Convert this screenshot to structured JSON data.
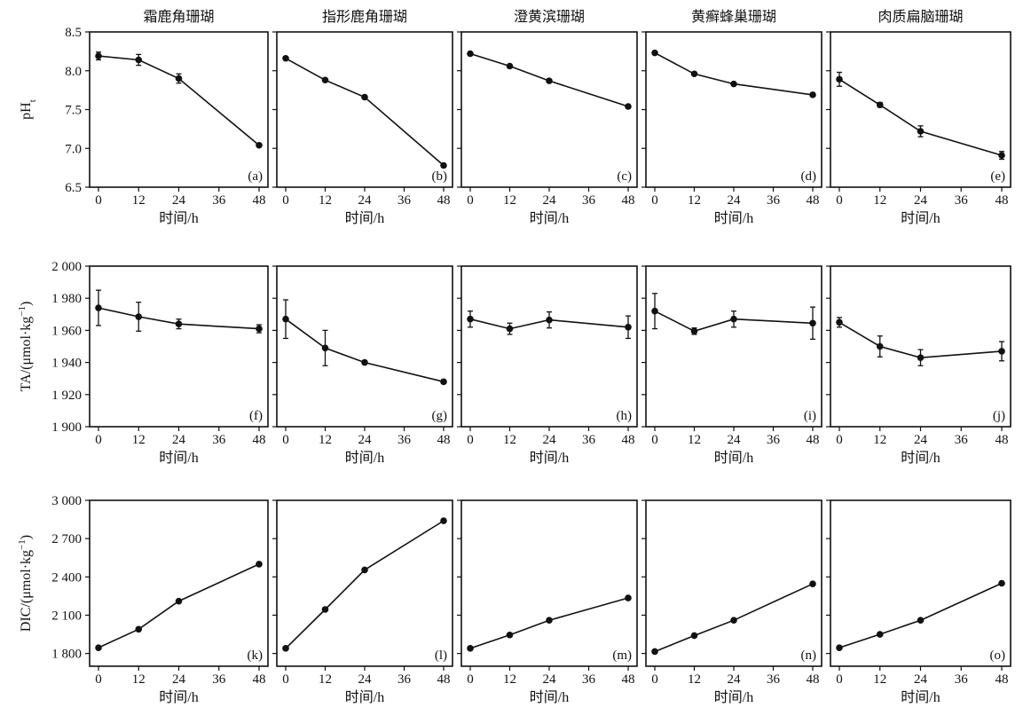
{
  "columns": [
    {
      "title": "霜鹿角珊瑚"
    },
    {
      "title": "指形鹿角珊瑚"
    },
    {
      "title": "澄黄滨珊瑚"
    },
    {
      "title": "黄癣蜂巢珊瑚"
    },
    {
      "title": "肉质扁脑珊瑚"
    }
  ],
  "rows": [
    {
      "ylabel_main": "pH",
      "ylabel_sub": "t",
      "ylabel_sup": "",
      "ylabel_tail": "",
      "yticks": [
        6.5,
        7.0,
        7.5,
        8.0,
        8.5
      ],
      "yticklabels": [
        "6.5",
        "7.0",
        "7.5",
        "8.0",
        "8.5"
      ]
    },
    {
      "ylabel_main": "TA/(μmol·kg",
      "ylabel_sub": "",
      "ylabel_sup": "−1",
      "ylabel_tail": ")",
      "yticks": [
        1900,
        1920,
        1940,
        1960,
        1980,
        2000
      ],
      "yticklabels": [
        "1 900",
        "1 920",
        "1 940",
        "1 960",
        "1 980",
        "2 000"
      ]
    },
    {
      "ylabel_main": "DIC/(μmol·kg",
      "ylabel_sub": "",
      "ylabel_sup": "−1",
      "ylabel_tail": ")",
      "yticks": [
        1800,
        2100,
        2400,
        2700,
        3000
      ],
      "yticklabels": [
        "1 800",
        "2 100",
        "2 400",
        "2 700",
        "3 000"
      ]
    }
  ],
  "xlabel": "时间/h",
  "xticks": [
    0,
    12,
    24,
    36,
    48
  ],
  "chart_data": [
    {
      "type": "line",
      "panel": "(a)",
      "ylim": [
        6.5,
        8.5
      ],
      "x": [
        0,
        12,
        24,
        48
      ],
      "y": [
        8.19,
        8.14,
        7.9,
        7.04
      ],
      "err": [
        0.05,
        0.07,
        0.06,
        0.02
      ]
    },
    {
      "type": "line",
      "panel": "(b)",
      "ylim": [
        6.5,
        8.5
      ],
      "x": [
        0,
        12,
        24,
        48
      ],
      "y": [
        8.16,
        7.88,
        7.66,
        6.78
      ],
      "err": [
        0.02,
        0.02,
        0.02,
        0.02
      ]
    },
    {
      "type": "line",
      "panel": "(c)",
      "ylim": [
        6.5,
        8.5
      ],
      "x": [
        0,
        12,
        24,
        48
      ],
      "y": [
        8.22,
        8.06,
        7.87,
        7.54
      ],
      "err": [
        0.02,
        0.02,
        0.02,
        0.02
      ]
    },
    {
      "type": "line",
      "panel": "(d)",
      "ylim": [
        6.5,
        8.5
      ],
      "x": [
        0,
        12,
        24,
        48
      ],
      "y": [
        8.23,
        7.96,
        7.83,
        7.69
      ],
      "err": [
        0.02,
        0.02,
        0.02,
        0.02
      ]
    },
    {
      "type": "line",
      "panel": "(e)",
      "ylim": [
        6.5,
        8.5
      ],
      "x": [
        0,
        12,
        24,
        48
      ],
      "y": [
        7.89,
        7.56,
        7.22,
        6.91
      ],
      "err": [
        0.09,
        0.03,
        0.07,
        0.05
      ]
    },
    {
      "type": "line",
      "panel": "(f)",
      "ylim": [
        1900,
        2000
      ],
      "x": [
        0,
        12,
        24,
        48
      ],
      "y": [
        1974,
        1968.5,
        1964,
        1961
      ],
      "err": [
        11,
        9,
        3,
        2.5
      ]
    },
    {
      "type": "line",
      "panel": "(g)",
      "ylim": [
        1900,
        2000
      ],
      "x": [
        0,
        12,
        24,
        48
      ],
      "y": [
        1967,
        1949,
        1940,
        1928
      ],
      "err": [
        12,
        11,
        1,
        1
      ]
    },
    {
      "type": "line",
      "panel": "(h)",
      "ylim": [
        1900,
        2000
      ],
      "x": [
        0,
        12,
        24,
        48
      ],
      "y": [
        1967,
        1961,
        1966.5,
        1962
      ],
      "err": [
        5,
        3.5,
        5,
        7
      ]
    },
    {
      "type": "line",
      "panel": "(i)",
      "ylim": [
        1900,
        2000
      ],
      "x": [
        0,
        12,
        24,
        48
      ],
      "y": [
        1972,
        1959.5,
        1967,
        1964.5
      ],
      "err": [
        11,
        2,
        5,
        10
      ]
    },
    {
      "type": "line",
      "panel": "(j)",
      "ylim": [
        1900,
        2000
      ],
      "x": [
        0,
        12,
        24,
        48
      ],
      "y": [
        1965,
        1950,
        1943,
        1947
      ],
      "err": [
        3,
        6.5,
        5,
        6
      ]
    },
    {
      "type": "line",
      "panel": "(k)",
      "ylim": [
        1700,
        3000
      ],
      "x": [
        0,
        12,
        24,
        48
      ],
      "y": [
        1845,
        1990,
        2210,
        2500
      ],
      "err": [
        0,
        0,
        0,
        0
      ]
    },
    {
      "type": "line",
      "panel": "(l)",
      "ylim": [
        1700,
        3000
      ],
      "x": [
        0,
        12,
        24,
        48
      ],
      "y": [
        1840,
        2145,
        2455,
        2840
      ],
      "err": [
        0,
        0,
        0,
        0
      ]
    },
    {
      "type": "line",
      "panel": "(m)",
      "ylim": [
        1700,
        3000
      ],
      "x": [
        0,
        12,
        24,
        48
      ],
      "y": [
        1840,
        1945,
        2060,
        2235
      ],
      "err": [
        0,
        0,
        0,
        0
      ]
    },
    {
      "type": "line",
      "panel": "(n)",
      "ylim": [
        1700,
        3000
      ],
      "x": [
        0,
        12,
        24,
        48
      ],
      "y": [
        1815,
        1940,
        2060,
        2345
      ],
      "err": [
        0,
        0,
        0,
        0
      ]
    },
    {
      "type": "line",
      "panel": "(o)",
      "ylim": [
        1700,
        3000
      ],
      "x": [
        0,
        12,
        24,
        48
      ],
      "y": [
        1845,
        1950,
        2060,
        2350
      ],
      "err": [
        0,
        0,
        0,
        0
      ]
    }
  ]
}
